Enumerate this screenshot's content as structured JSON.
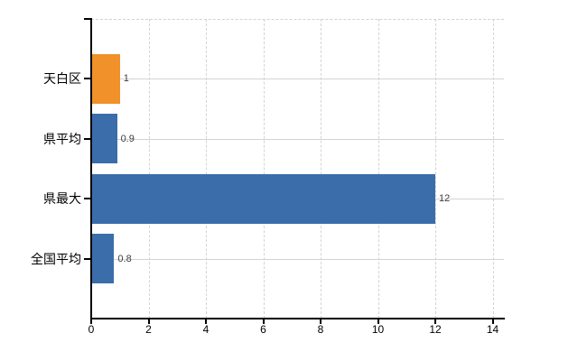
{
  "chart_data": {
    "type": "bar",
    "orientation": "horizontal",
    "title": "",
    "xlabel": "",
    "ylabel": "",
    "categories": [
      "天白区",
      "県平均",
      "県最大",
      "全国平均"
    ],
    "values": [
      1,
      0.9,
      12,
      0.8
    ],
    "value_labels": [
      "1",
      "0.9",
      "12",
      "0.8"
    ],
    "bar_colors": [
      "#f0912a",
      "#3b6dab",
      "#3b6dab",
      "#3b6dab"
    ],
    "xlim": [
      0,
      14
    ],
    "xticks": [
      0,
      2,
      4,
      6,
      8,
      10,
      12,
      14
    ],
    "xtick_labels": [
      "0",
      "2",
      "4",
      "6",
      "8",
      "10",
      "12",
      "14"
    ],
    "grid": {
      "vertical": "dashed",
      "horizontal": "solid",
      "top_border": "dashed"
    },
    "legend": "none"
  },
  "colors": {
    "background": "#ffffff",
    "bar_orange": "#f0912a",
    "bar_blue": "#3b6dab",
    "axis": "#000000",
    "gridline_horizontal": "#cfd6ce",
    "gridline_vertical": "#d8d1d8",
    "category_text": "#000000",
    "tick_text": "#000000",
    "value_text": "#3c3c3c"
  }
}
